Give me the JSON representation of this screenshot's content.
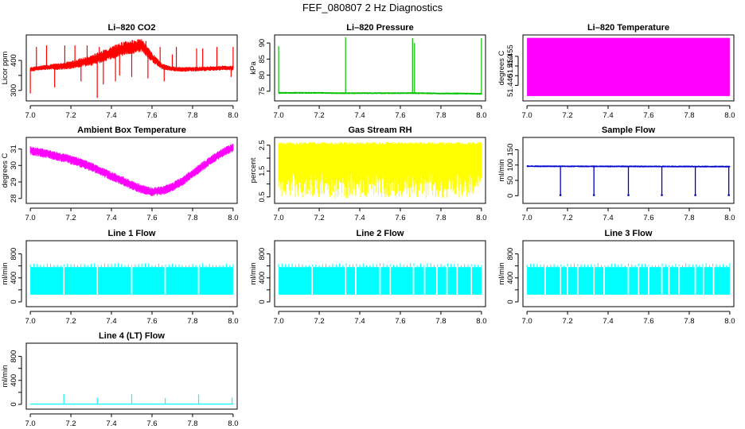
{
  "figure": {
    "title": "FEF_080807  2 Hz Diagnostics"
  },
  "colors": {
    "red": "#ff0000",
    "green": "#00c000",
    "magenta": "#ff00ff",
    "yellow": "#ffff00",
    "blue": "#0000cc",
    "cyan": "#00ffff"
  },
  "chart_data": [
    {
      "type": "line",
      "title": "Li–820 CO2",
      "xlabel": "",
      "ylabel": "Licor ppm",
      "color": "#ff0000",
      "xlim": [
        6.98,
        8.02
      ],
      "ylim": [
        265,
        485
      ],
      "xticks": [
        "7.0",
        "7.2",
        "7.4",
        "7.6",
        "7.8",
        "8.0"
      ],
      "yticks": [
        300,
        350,
        400
      ],
      "ytick_labels": [
        "300",
        "",
        "400"
      ],
      "series": [
        {
          "x": [
            7.0,
            7.05,
            7.1,
            7.15,
            7.2,
            7.25,
            7.3,
            7.35,
            7.4,
            7.45,
            7.5,
            7.55,
            7.6,
            7.65,
            7.7,
            7.75,
            7.8,
            7.85,
            7.9,
            7.95,
            8.0
          ],
          "values": [
            370,
            375,
            378,
            380,
            385,
            392,
            400,
            412,
            425,
            438,
            445,
            450,
            410,
            380,
            372,
            370,
            371,
            372,
            373,
            375,
            375
          ]
        }
      ],
      "band": [
        8,
        8,
        10,
        12,
        14,
        16,
        18,
        20,
        22,
        24,
        24,
        22,
        16,
        10,
        8,
        8,
        8,
        8,
        8,
        8,
        8
      ],
      "spikes": [
        {
          "x": 7.0,
          "y": 290
        },
        {
          "x": 7.03,
          "y": 445
        },
        {
          "x": 7.08,
          "y": 450
        },
        {
          "x": 7.12,
          "y": 310
        },
        {
          "x": 7.17,
          "y": 450
        },
        {
          "x": 7.22,
          "y": 450
        },
        {
          "x": 7.25,
          "y": 330
        },
        {
          "x": 7.28,
          "y": 450
        },
        {
          "x": 7.33,
          "y": 275
        },
        {
          "x": 7.34,
          "y": 445
        },
        {
          "x": 7.36,
          "y": 320
        },
        {
          "x": 7.42,
          "y": 330
        },
        {
          "x": 7.44,
          "y": 350
        },
        {
          "x": 7.5,
          "y": 345
        },
        {
          "x": 7.57,
          "y": 465
        },
        {
          "x": 7.58,
          "y": 340
        },
        {
          "x": 7.64,
          "y": 445
        },
        {
          "x": 7.66,
          "y": 330
        },
        {
          "x": 7.7,
          "y": 420
        },
        {
          "x": 7.72,
          "y": 445
        },
        {
          "x": 7.82,
          "y": 440
        },
        {
          "x": 7.85,
          "y": 440
        },
        {
          "x": 7.92,
          "y": 445
        },
        {
          "x": 7.99,
          "y": 345
        },
        {
          "x": 8.0,
          "y": 445
        }
      ],
      "grid": false
    },
    {
      "type": "line",
      "title": "Li–820 Pressure",
      "xlabel": "",
      "ylabel": "kPa",
      "color": "#00c000",
      "xlim": [
        6.98,
        8.02
      ],
      "ylim": [
        72,
        92.5
      ],
      "xticks": [
        "7.0",
        "7.2",
        "7.4",
        "7.6",
        "7.8",
        "8.0"
      ],
      "yticks": [
        75,
        80,
        85,
        90
      ],
      "ytick_labels": [
        "75",
        "80",
        "85",
        "90"
      ],
      "series": [
        {
          "x": [
            7.0,
            7.1,
            7.2,
            7.3,
            7.4,
            7.5,
            7.6,
            7.7,
            7.8,
            7.9,
            8.0
          ],
          "values": [
            74.5,
            74.5,
            74.5,
            74.4,
            74.4,
            74.4,
            74.4,
            74.4,
            74.3,
            74.3,
            74.2
          ]
        }
      ],
      "band": [
        0.3,
        0.3,
        0.3,
        0.3,
        0.3,
        0.3,
        0.3,
        0.3,
        0.3,
        0.3,
        0.3
      ],
      "spikes": [
        {
          "x": 7.0,
          "y": 89
        },
        {
          "x": 7.33,
          "y": 91.8
        },
        {
          "x": 7.66,
          "y": 91.5
        },
        {
          "x": 7.67,
          "y": 90
        },
        {
          "x": 8.0,
          "y": 91.5
        }
      ],
      "grid": false
    },
    {
      "type": "area",
      "title": "Li–820 Temperature",
      "xlabel": "",
      "ylabel": "degrees C",
      "color": "#ff00ff",
      "xlim": [
        6.98,
        8.02
      ],
      "ylim": [
        51.432,
        51.466
      ],
      "xticks": [
        "7.0",
        "7.2",
        "7.4",
        "7.6",
        "7.8",
        "8.0"
      ],
      "yticks": [
        51.44,
        51.445,
        51.45,
        51.455
      ],
      "ytick_labels": [
        "51.440",
        "",
        "51.450",
        "51.455"
      ],
      "series": [
        {
          "x": [
            7.0,
            8.0
          ],
          "low": [
            51.4345,
            51.4345
          ],
          "high": [
            51.4645,
            51.4645
          ]
        }
      ],
      "grid": false
    },
    {
      "type": "line",
      "title": "Ambient Box Temperature",
      "xlabel": "",
      "ylabel": "degrees C",
      "color": "#ff00ff",
      "xlim": [
        6.98,
        8.02
      ],
      "ylim": [
        27.7,
        31.7
      ],
      "xticks": [
        "7.0",
        "7.2",
        "7.4",
        "7.6",
        "7.8",
        "8.0"
      ],
      "yticks": [
        28,
        29,
        30,
        31
      ],
      "ytick_labels": [
        "28",
        "29",
        "30",
        "31"
      ],
      "series": [
        {
          "x": [
            7.0,
            7.05,
            7.1,
            7.15,
            7.2,
            7.25,
            7.3,
            7.35,
            7.4,
            7.45,
            7.5,
            7.55,
            7.6,
            7.65,
            7.7,
            7.75,
            7.8,
            7.85,
            7.9,
            7.95,
            8.0
          ],
          "values": [
            30.9,
            30.8,
            30.65,
            30.5,
            30.35,
            30.15,
            29.9,
            29.65,
            29.35,
            29.1,
            28.8,
            28.55,
            28.4,
            28.45,
            28.7,
            29.05,
            29.5,
            29.95,
            30.4,
            30.8,
            31.1
          ]
        }
      ],
      "band": [
        0.28,
        0.28,
        0.28,
        0.28,
        0.28,
        0.28,
        0.28,
        0.28,
        0.28,
        0.28,
        0.28,
        0.28,
        0.28,
        0.28,
        0.28,
        0.28,
        0.28,
        0.28,
        0.28,
        0.28,
        0.28
      ],
      "grid": false
    },
    {
      "type": "area",
      "title": "Gas Stream RH",
      "xlabel": "",
      "ylabel": "percent",
      "color": "#ffff00",
      "xlim": [
        6.98,
        8.02
      ],
      "ylim": [
        0.25,
        2.8
      ],
      "xticks": [
        "7.0",
        "7.2",
        "7.4",
        "7.6",
        "7.8",
        "8.0"
      ],
      "yticks": [
        0.5,
        1.0,
        1.5,
        2.0,
        2.5
      ],
      "ytick_labels": [
        "0.5",
        "",
        "1.5",
        "",
        "2.5"
      ],
      "series": [
        {
          "x": [
            7.0,
            8.0
          ],
          "low": [
            1.0,
            1.0
          ],
          "high": [
            2.5,
            2.5
          ]
        }
      ],
      "dips_to": 0.45,
      "peaks_to": 2.65,
      "grid": false
    },
    {
      "type": "line",
      "title": "Sample Flow",
      "xlabel": "",
      "ylabel": "ml/min",
      "color": "#0000cc",
      "xlim": [
        6.98,
        8.02
      ],
      "ylim": [
        -25,
        190
      ],
      "xticks": [
        "7.0",
        "7.2",
        "7.4",
        "7.6",
        "7.8",
        "8.0"
      ],
      "yticks": [
        0,
        50,
        100,
        150
      ],
      "ytick_labels": [
        "0",
        "50",
        "100",
        "150"
      ],
      "series": [
        {
          "x": [
            7.0,
            8.0
          ],
          "values": [
            96,
            95
          ]
        }
      ],
      "band": [
        3,
        3
      ],
      "dips": [
        7.165,
        7.33,
        7.5,
        7.665,
        7.83,
        7.995
      ],
      "dip_value": 2,
      "grid": false
    },
    {
      "type": "area",
      "title": "Line 1 Flow",
      "xlabel": "",
      "ylabel": "ml/min",
      "color": "#00ffff",
      "xlim": [
        6.98,
        8.02
      ],
      "ylim": [
        -80,
        1020
      ],
      "xticks": [
        "7.0",
        "7.2",
        "7.4",
        "7.6",
        "7.8",
        "8.0"
      ],
      "yticks": [
        0,
        200,
        400,
        600,
        800
      ],
      "ytick_labels": [
        "0",
        "",
        "400",
        "",
        "800"
      ],
      "series": [
        {
          "x": [
            7.0,
            8.0
          ],
          "low": [
            120,
            120
          ],
          "high": [
            580,
            580
          ]
        }
      ],
      "gaps": [
        7.165,
        7.33,
        7.5,
        7.665,
        7.83
      ],
      "grid": false
    },
    {
      "type": "area",
      "title": "Line 2 Flow",
      "xlabel": "",
      "ylabel": "ml/min",
      "color": "#00ffff",
      "xlim": [
        6.98,
        8.02
      ],
      "ylim": [
        -80,
        1020
      ],
      "xticks": [
        "7.0",
        "7.2",
        "7.4",
        "7.6",
        "7.8",
        "8.0"
      ],
      "yticks": [
        0,
        200,
        400,
        600,
        800
      ],
      "ytick_labels": [
        "0",
        "",
        "400",
        "",
        "800"
      ],
      "series": [
        {
          "x": [
            7.0,
            8.0
          ],
          "low": [
            120,
            120
          ],
          "high": [
            580,
            580
          ]
        }
      ],
      "gaps": [
        7.165,
        7.33,
        7.38,
        7.5,
        7.55,
        7.665,
        7.72,
        7.78,
        7.83,
        7.88,
        7.95
      ],
      "grid": false
    },
    {
      "type": "area",
      "title": "Line 3 Flow",
      "xlabel": "",
      "ylabel": "ml/min",
      "color": "#00ffff",
      "xlim": [
        6.98,
        8.02
      ],
      "ylim": [
        -80,
        1020
      ],
      "xticks": [
        "7.0",
        "7.2",
        "7.4",
        "7.6",
        "7.8",
        "8.0"
      ],
      "yticks": [
        0,
        200,
        400,
        600,
        800
      ],
      "ytick_labels": [
        "0",
        "",
        "400",
        "",
        "800"
      ],
      "series": [
        {
          "x": [
            7.0,
            8.0
          ],
          "low": [
            120,
            120
          ],
          "high": [
            580,
            580
          ]
        }
      ],
      "gaps": [
        7.09,
        7.165,
        7.2,
        7.25,
        7.33,
        7.38,
        7.5,
        7.55,
        7.6,
        7.665,
        7.7,
        7.75,
        7.83,
        7.87,
        7.92
      ],
      "grid": false
    },
    {
      "type": "line",
      "title": "Line 4 (LT) Flow",
      "xlabel": "",
      "ylabel": "ml/min",
      "color": "#00ffff",
      "xlim": [
        6.98,
        8.02
      ],
      "ylim": [
        -80,
        1020
      ],
      "xticks": [
        "7.0",
        "7.2",
        "7.4",
        "7.6",
        "7.8",
        "8.0"
      ],
      "yticks": [
        0,
        200,
        400,
        600,
        800
      ],
      "ytick_labels": [
        "0",
        "",
        "400",
        "",
        "800"
      ],
      "series": [
        {
          "x": [
            7.0,
            8.0
          ],
          "values": [
            5,
            5
          ]
        }
      ],
      "band": [
        3,
        3
      ],
      "spikes": [
        {
          "x": 7.165,
          "y": 175
        },
        {
          "x": 7.33,
          "y": 110
        },
        {
          "x": 7.5,
          "y": 170
        },
        {
          "x": 7.665,
          "y": 105
        },
        {
          "x": 7.83,
          "y": 165
        },
        {
          "x": 7.995,
          "y": 110
        }
      ],
      "grid": false
    }
  ]
}
